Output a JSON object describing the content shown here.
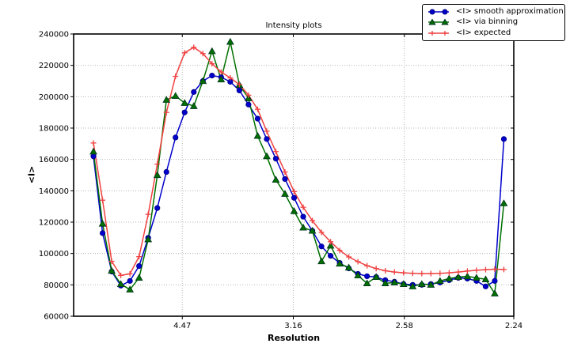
{
  "figure": {
    "title": "Intensity plots",
    "xlabel": "Resolution",
    "ylabel": "<I>"
  },
  "chart_data": {
    "type": "line",
    "title": "Intensity plots",
    "xlabel": "Resolution",
    "ylabel": "<I>",
    "grid": {
      "show": true,
      "style": "dotted",
      "color": "#b5b5b5"
    },
    "legend_position": "upper-right-outside",
    "x_axis": {
      "unit": "1/d^2 (tick labels show resolution d in Angstrom)",
      "xlim": [
        0.00107,
        0.19929
      ],
      "ticks": [
        {
          "value": 0.05,
          "label": "4.47"
        },
        {
          "value": 0.1,
          "label": "3.16"
        },
        {
          "value": 0.15,
          "label": "2.58"
        },
        {
          "value": 0.19929,
          "label": "2.24"
        }
      ]
    },
    "y_axis": {
      "ylim": [
        60000,
        240000
      ],
      "ticks": [
        60000,
        80000,
        100000,
        120000,
        140000,
        160000,
        180000,
        200000,
        220000,
        240000
      ]
    },
    "x": [
      0.01,
      0.01411,
      0.01821,
      0.02232,
      0.02643,
      0.03054,
      0.03464,
      0.03875,
      0.04286,
      0.04696,
      0.05107,
      0.05518,
      0.05929,
      0.06339,
      0.0675,
      0.07161,
      0.07571,
      0.07982,
      0.08393,
      0.08804,
      0.09214,
      0.09625,
      0.10036,
      0.10446,
      0.10857,
      0.11268,
      0.11679,
      0.12089,
      0.125,
      0.12911,
      0.13321,
      0.13732,
      0.14143,
      0.14554,
      0.14964,
      0.15375,
      0.15786,
      0.16196,
      0.16607,
      0.17018,
      0.17429,
      0.17839,
      0.1825,
      0.18661,
      0.19071,
      0.19482
    ],
    "series": [
      {
        "name": "<I> smooth approximation",
        "color": "#0000cc",
        "edge": "#000080",
        "marker": "circle",
        "values": [
          162000,
          113000,
          88500,
          79500,
          82500,
          92000,
          110000,
          129000,
          152000,
          174000,
          190000,
          203000,
          210000,
          213500,
          212500,
          209500,
          204000,
          195000,
          186000,
          173000,
          160500,
          147500,
          135500,
          123500,
          114500,
          104500,
          98500,
          94000,
          90500,
          87000,
          85500,
          85000,
          83000,
          82000,
          80500,
          80000,
          80000,
          80500,
          81500,
          83000,
          84500,
          84000,
          82500,
          79000,
          82500,
          173000
        ]
      },
      {
        "name": "<I> via binning",
        "color": "#007000",
        "edge": "#013220",
        "marker": "triangle",
        "values": [
          165000,
          119000,
          89000,
          80500,
          77000,
          84500,
          109000,
          150000,
          198000,
          200500,
          196000,
          194000,
          210000,
          229000,
          211000,
          235000,
          207500,
          199000,
          175000,
          162000,
          147000,
          138000,
          127000,
          116500,
          114500,
          95000,
          105000,
          93500,
          91000,
          86000,
          81000,
          85000,
          81000,
          81500,
          80500,
          79000,
          80500,
          80000,
          82500,
          84000,
          85000,
          85400,
          84500,
          83500,
          74500,
          132000
        ]
      },
      {
        "name": "<I> expected",
        "color": "#f04040",
        "edge": "#f04040",
        "marker": "plus",
        "values": [
          170500,
          134000,
          95000,
          86000,
          87000,
          98000,
          125000,
          157000,
          190000,
          213000,
          228000,
          231500,
          227500,
          221000,
          215800,
          212000,
          207800,
          201000,
          192000,
          178000,
          165000,
          152000,
          139500,
          129500,
          121000,
          113500,
          107500,
          102000,
          97800,
          94800,
          92200,
          90400,
          89000,
          88200,
          87700,
          87400,
          87200,
          87200,
          87400,
          87700,
          88200,
          88800,
          89300,
          89700,
          90000,
          89800
        ]
      }
    ]
  }
}
